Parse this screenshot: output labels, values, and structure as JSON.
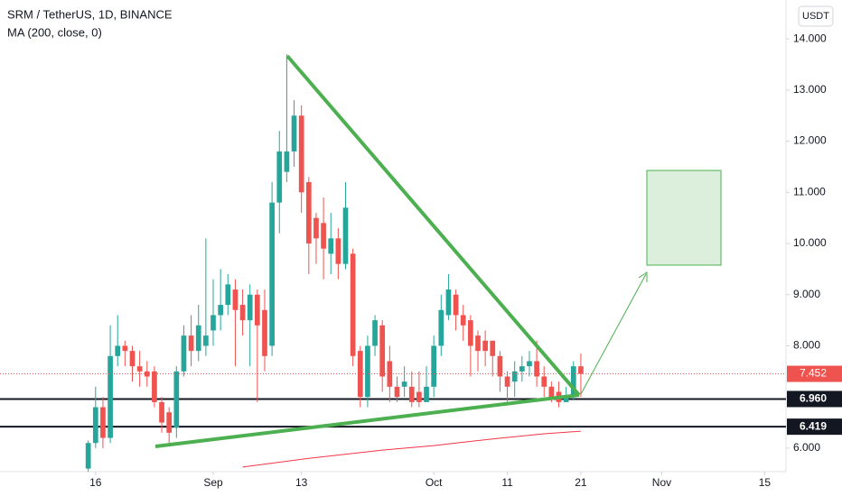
{
  "chart_data": {
    "type": "candlestick",
    "title": "SRM / TetherUS, 1D, BINANCE",
    "indicator": "MA (200, close, 0)",
    "currency": "USDT",
    "up_color": "#26a69a",
    "down_color": "#ef5350",
    "ma_color": "#f23645",
    "xlim": [
      -12,
      94.9
    ],
    "xticks": [
      {
        "value": 1,
        "label": "16"
      },
      {
        "value": 17,
        "label": "Sep"
      },
      {
        "value": 29,
        "label": "13"
      },
      {
        "value": 47,
        "label": "Oct"
      },
      {
        "value": 57,
        "label": "11"
      },
      {
        "value": 67,
        "label": "21"
      },
      {
        "value": 78,
        "label": "Nov"
      },
      {
        "value": 92,
        "label": "15"
      }
    ],
    "ylim": [
      5.54,
      14.76
    ],
    "yticks": [
      {
        "value": 6,
        "label": "6.000"
      },
      {
        "value": 7,
        "label": "7.000"
      },
      {
        "value": 8,
        "label": "8.000"
      },
      {
        "value": 9,
        "label": "9.000"
      },
      {
        "value": 10,
        "label": "10.000"
      },
      {
        "value": 11,
        "label": "11.000"
      },
      {
        "value": 12,
        "label": "12.000"
      },
      {
        "value": 13,
        "label": "13.000"
      },
      {
        "value": 14,
        "label": "14.000"
      }
    ],
    "x": [
      0,
      1,
      2,
      3,
      4,
      5,
      6,
      7,
      8,
      9,
      10,
      11,
      12,
      13,
      14,
      15,
      16,
      17,
      18,
      19,
      20,
      21,
      22,
      23,
      24,
      25,
      26,
      27,
      28,
      29,
      30,
      31,
      32,
      33,
      34,
      35,
      36,
      37,
      38,
      39,
      40,
      41,
      42,
      43,
      44,
      45,
      46,
      47,
      48,
      49,
      50,
      51,
      52,
      53,
      54,
      55,
      56,
      57,
      58,
      59,
      60,
      61,
      62,
      63,
      64,
      65,
      66,
      67
    ],
    "open": [
      5.6,
      6.1,
      6.8,
      6.2,
      7.8,
      8.0,
      7.9,
      7.6,
      7.5,
      7.5,
      6.9,
      6.7,
      6.4,
      7.5,
      8.2,
      7.9,
      8.0,
      8.3,
      8.6,
      8.8,
      9.1,
      8.8,
      8.5,
      9.0,
      8.7,
      8.0,
      10.8,
      11.4,
      11.8,
      12.5,
      11.2,
      10.5,
      10.4,
      9.8,
      10.1,
      9.6,
      9.8,
      7.9,
      7.0,
      8.0,
      8.4,
      7.7,
      7.2,
      7.2,
      7.2,
      7.1,
      6.9,
      7.2,
      8.0,
      8.6,
      9.0,
      8.6,
      8.5,
      8.2,
      8.1,
      8.1,
      7.8,
      7.4,
      7.3,
      7.5,
      7.6,
      7.7,
      7.4,
      7.2,
      7.1,
      6.9,
      7.0,
      7.6
    ],
    "high": [
      6.15,
      7.2,
      7.0,
      8.4,
      8.6,
      8.1,
      8.0,
      7.9,
      7.7,
      7.6,
      7.0,
      6.8,
      7.6,
      8.4,
      8.6,
      8.8,
      10.1,
      9.3,
      9.5,
      9.4,
      9.3,
      9.1,
      9.2,
      9.1,
      9.1,
      11.2,
      12.2,
      13.7,
      12.8,
      12.7,
      11.3,
      10.6,
      10.9,
      10.6,
      10.3,
      11.2,
      9.9,
      8.0,
      8.2,
      8.6,
      8.5,
      8.0,
      7.4,
      7.6,
      7.5,
      7.5,
      7.6,
      8.2,
      9.0,
      9.4,
      9.1,
      8.8,
      8.6,
      8.3,
      8.3,
      8.1,
      7.9,
      7.5,
      7.7,
      7.8,
      7.9,
      8.1,
      7.6,
      7.3,
      7.3,
      7.2,
      7.7,
      7.85
    ],
    "low": [
      5.5,
      6.0,
      6.0,
      6.1,
      7.6,
      7.6,
      7.3,
      7.2,
      7.2,
      6.8,
      6.3,
      6.1,
      6.2,
      7.4,
      7.6,
      7.7,
      7.8,
      8.0,
      8.3,
      8.6,
      7.6,
      8.2,
      7.6,
      6.9,
      7.5,
      7.8,
      10.2,
      11.2,
      11.5,
      10.6,
      9.4,
      9.6,
      9.3,
      9.4,
      9.3,
      9.5,
      7.6,
      6.8,
      6.8,
      7.8,
      7.1,
      6.9,
      6.9,
      7.0,
      6.8,
      6.8,
      6.9,
      7.0,
      7.8,
      8.5,
      8.3,
      8.1,
      7.4,
      7.5,
      7.6,
      7.4,
      7.1,
      6.9,
      7.0,
      7.3,
      7.4,
      7.2,
      7.0,
      6.9,
      6.8,
      6.9,
      6.95,
      7.0
    ],
    "close": [
      6.1,
      6.8,
      6.2,
      7.8,
      8.0,
      7.9,
      7.6,
      7.5,
      7.4,
      6.9,
      6.5,
      6.3,
      7.5,
      8.2,
      7.9,
      8.4,
      8.2,
      8.6,
      8.8,
      9.2,
      8.7,
      8.5,
      9.0,
      8.4,
      7.8,
      10.8,
      11.8,
      11.8,
      12.5,
      11.0,
      10.0,
      10.1,
      9.9,
      10.1,
      9.6,
      10.7,
      7.8,
      7.0,
      8.0,
      8.5,
      7.4,
      7.2,
      7.0,
      7.3,
      6.9,
      6.9,
      7.2,
      8.0,
      8.7,
      9.1,
      8.6,
      8.4,
      8.0,
      7.9,
      7.9,
      7.8,
      7.4,
      7.2,
      7.5,
      7.6,
      7.7,
      7.4,
      7.2,
      6.95,
      6.9,
      7.0,
      7.6,
      7.452
    ],
    "ma": {
      "x": [
        21,
        30,
        40,
        47,
        55,
        62,
        67
      ],
      "values": [
        5.63,
        5.8,
        5.96,
        6.05,
        6.18,
        6.28,
        6.33
      ]
    },
    "last_price": {
      "value": 7.452,
      "label": "7.452"
    },
    "levels": [
      {
        "value": 6.96,
        "label": "6.960"
      },
      {
        "value": 6.419,
        "label": "6.419"
      }
    ]
  }
}
